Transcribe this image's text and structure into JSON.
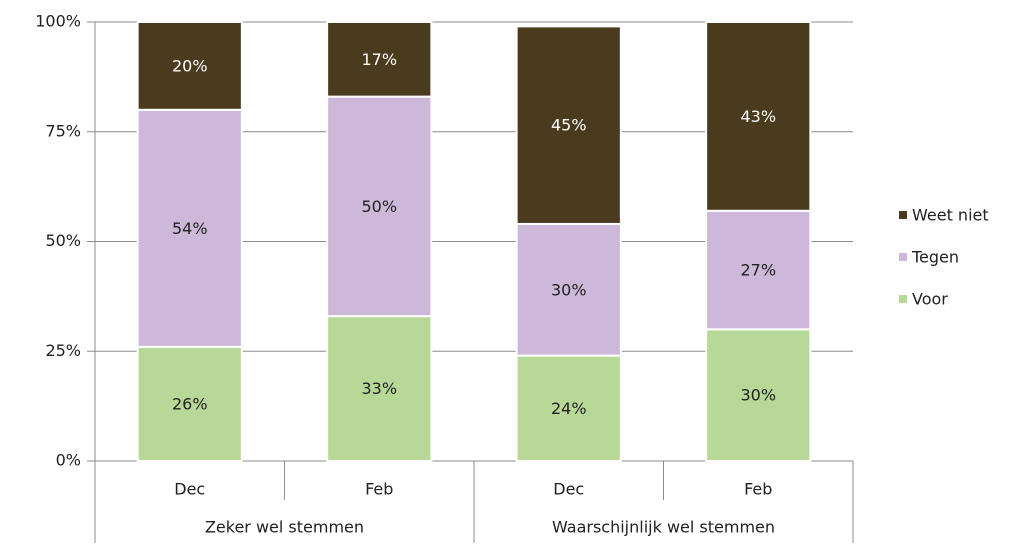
{
  "chart_data": {
    "type": "stacked_bar",
    "categories": [
      "Dec",
      "Feb",
      "Dec",
      "Feb"
    ],
    "groups": [
      "Zeker wel stemmen",
      "Waarschijnlijk wel stemmen"
    ],
    "series": [
      {
        "name": "Voor",
        "color": "#b8d898",
        "label_color": "#222222",
        "values": [
          26,
          33,
          24,
          30
        ],
        "value_labels": [
          "26%",
          "33%",
          "24%",
          "30%"
        ]
      },
      {
        "name": "Tegen",
        "color": "#cdb8d9",
        "label_color": "#222222",
        "values": [
          54,
          50,
          30,
          27
        ],
        "value_labels": [
          "54%",
          "50%",
          "30%",
          "27%"
        ]
      },
      {
        "name": "Weet niet",
        "color": "#4a3a1e",
        "label_color": "#ffffff",
        "values": [
          20,
          17,
          45,
          43
        ],
        "value_labels": [
          "20%",
          "17%",
          "45%",
          "43%"
        ]
      }
    ],
    "ylim": [
      0,
      100
    ],
    "yticks": [
      {
        "value": 0,
        "label": "0%"
      },
      {
        "value": 25,
        "label": "25%"
      },
      {
        "value": 50,
        "label": "50%"
      },
      {
        "value": 75,
        "label": "75%"
      },
      {
        "value": 100,
        "label": "100%"
      }
    ],
    "grid": true,
    "legend": "right"
  }
}
